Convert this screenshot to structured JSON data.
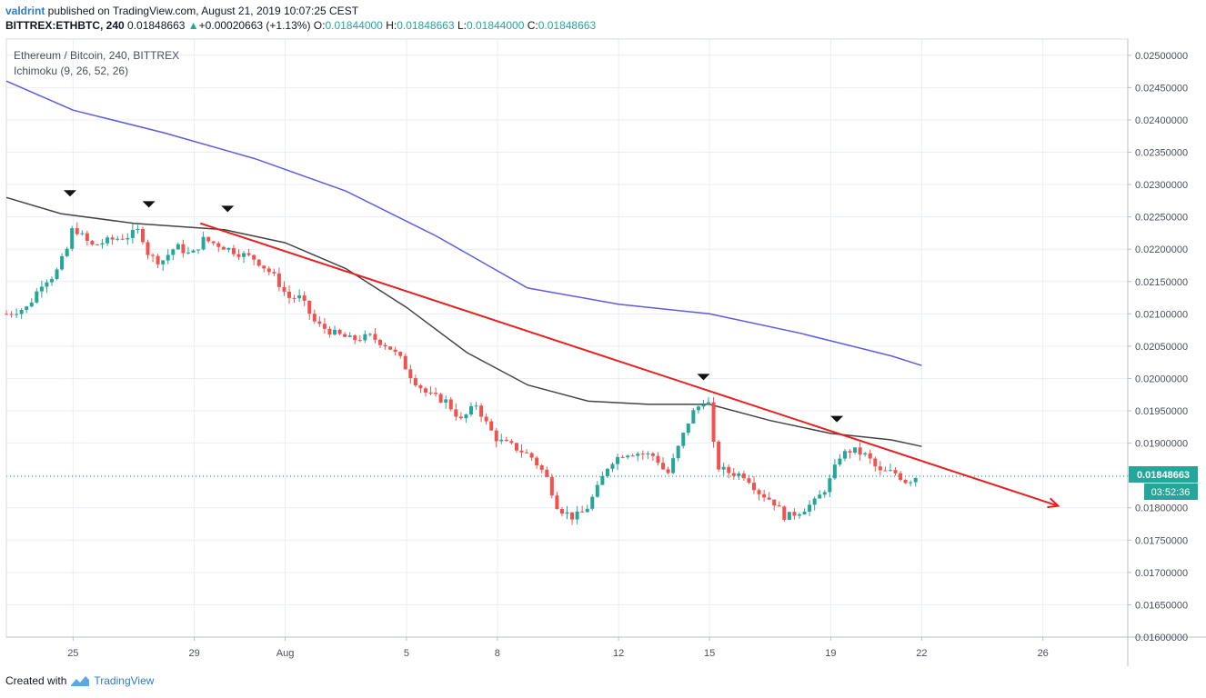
{
  "header": {
    "author": "valdrint",
    "published_text": " published on TradingView.com, August 21, 2019 10:07:25 CEST",
    "symbol": "BITTREX:ETHBTC, 240",
    "last": "0.01848663",
    "change_arrow": "▲",
    "change": "+0.00020663 (+1.13%)",
    "o_label": "O:",
    "o_value": "0.01844000",
    "h_label": "H:",
    "h_value": "0.01848663",
    "l_label": "L:",
    "l_value": "0.01844000",
    "c_label": "C:",
    "c_value": "0.01848663"
  },
  "legend": {
    "title": "Ethereum / Bitcoin, 240, BITTREX",
    "indicator": "Ichimoku (9, 26, 52, 26)"
  },
  "price_tag": {
    "value": "0.01848663",
    "countdown": "03:52:36"
  },
  "footer": {
    "created_with": "Created with",
    "brand": "TradingView",
    "logo_icon": "tradingview-logo-icon"
  },
  "colors": {
    "up": "#26a69a",
    "down": "#ef5350",
    "trend": "#e8201f",
    "slow_ma": "#5b5ce0",
    "fast_ma": "#444444",
    "grid": "#e9eef5",
    "price_line": "#26a69a"
  },
  "chart_data": {
    "type": "candlestick",
    "title": "Ethereum / Bitcoin, 240, BITTREX",
    "ylim": [
      0.016,
      0.02525
    ],
    "y_ticks": [
      "0.02500000",
      "0.02450000",
      "0.02400000",
      "0.02350000",
      "0.02300000",
      "0.02250000",
      "0.02200000",
      "0.02150000",
      "0.02100000",
      "0.02050000",
      "0.02000000",
      "0.01950000",
      "0.01900000",
      "0.01850000",
      "0.01800000",
      "0.01750000",
      "0.01700000",
      "0.01650000",
      "0.01600000"
    ],
    "x_ticks": [
      {
        "label": "25",
        "day": 25
      },
      {
        "label": "29",
        "day": 29
      },
      {
        "label": "Aug",
        "day": 32
      },
      {
        "label": "5",
        "day": 36
      },
      {
        "label": "8",
        "day": 39
      },
      {
        "label": "12",
        "day": 43
      },
      {
        "label": "15",
        "day": 46
      },
      {
        "label": "19",
        "day": 50
      },
      {
        "label": "22",
        "day": 53
      },
      {
        "label": "26",
        "day": 57
      }
    ],
    "x_range_days": [
      22.8,
      59.8
    ],
    "candle_path": [
      [
        22.8,
        0.021
      ],
      [
        23.5,
        0.0211
      ],
      [
        24.0,
        0.0215
      ],
      [
        24.4,
        0.0216
      ],
      [
        24.8,
        0.022
      ],
      [
        25.0,
        0.02235
      ],
      [
        25.6,
        0.02205
      ],
      [
        26.3,
        0.02215
      ],
      [
        26.8,
        0.0222
      ],
      [
        27.2,
        0.0223
      ],
      [
        27.5,
        0.0219
      ],
      [
        27.9,
        0.0218
      ],
      [
        28.4,
        0.02205
      ],
      [
        28.9,
        0.0219
      ],
      [
        29.3,
        0.02215
      ],
      [
        29.9,
        0.02205
      ],
      [
        30.4,
        0.02195
      ],
      [
        31.0,
        0.02185
      ],
      [
        31.6,
        0.0216
      ],
      [
        32.1,
        0.02125
      ],
      [
        32.5,
        0.02125
      ],
      [
        33.0,
        0.02085
      ],
      [
        33.6,
        0.0207
      ],
      [
        34.2,
        0.0206
      ],
      [
        34.8,
        0.02065
      ],
      [
        35.4,
        0.0205
      ],
      [
        35.8,
        0.0203
      ],
      [
        36.2,
        0.02
      ],
      [
        36.7,
        0.01975
      ],
      [
        37.3,
        0.01965
      ],
      [
        37.8,
        0.01935
      ],
      [
        38.3,
        0.0196
      ],
      [
        38.7,
        0.01925
      ],
      [
        39.0,
        0.01905
      ],
      [
        39.5,
        0.01895
      ],
      [
        40.1,
        0.0188
      ],
      [
        40.6,
        0.0185
      ],
      [
        41.0,
        0.018
      ],
      [
        41.5,
        0.01785
      ],
      [
        41.9,
        0.01795
      ],
      [
        42.3,
        0.0183
      ],
      [
        42.7,
        0.0187
      ],
      [
        43.2,
        0.01885
      ],
      [
        43.6,
        0.01885
      ],
      [
        44.2,
        0.0188
      ],
      [
        44.6,
        0.0185
      ],
      [
        44.9,
        0.01885
      ],
      [
        45.4,
        0.01945
      ],
      [
        45.8,
        0.01965
      ],
      [
        46.0,
        0.0196
      ],
      [
        46.2,
        0.01865
      ],
      [
        46.6,
        0.01855
      ],
      [
        47.2,
        0.0185
      ],
      [
        47.6,
        0.01825
      ],
      [
        48.1,
        0.0181
      ],
      [
        48.5,
        0.01785
      ],
      [
        49.0,
        0.01795
      ],
      [
        49.5,
        0.0181
      ],
      [
        49.9,
        0.01835
      ],
      [
        50.3,
        0.0188
      ],
      [
        50.7,
        0.0189
      ],
      [
        51.2,
        0.0188
      ],
      [
        51.6,
        0.01855
      ],
      [
        52.1,
        0.01855
      ],
      [
        52.5,
        0.0184
      ],
      [
        52.8,
        0.01848
      ]
    ],
    "fast_ma": [
      [
        22.8,
        0.0228
      ],
      [
        24.6,
        0.02255
      ],
      [
        27.0,
        0.0224
      ],
      [
        30.0,
        0.0223
      ],
      [
        32.0,
        0.0221
      ],
      [
        34.0,
        0.0217
      ],
      [
        36.0,
        0.0211
      ],
      [
        38.0,
        0.0204
      ],
      [
        40.0,
        0.0199
      ],
      [
        42.0,
        0.01965
      ],
      [
        44.0,
        0.0196
      ],
      [
        46.0,
        0.0196
      ],
      [
        48.0,
        0.01935
      ],
      [
        50.0,
        0.01915
      ],
      [
        52.0,
        0.01905
      ],
      [
        53.0,
        0.01895
      ]
    ],
    "slow_ma": [
      [
        22.8,
        0.0246
      ],
      [
        25.0,
        0.02415
      ],
      [
        28.0,
        0.0238
      ],
      [
        31.0,
        0.0234
      ],
      [
        34.0,
        0.0229
      ],
      [
        37.0,
        0.0222
      ],
      [
        40.0,
        0.0214
      ],
      [
        43.0,
        0.02115
      ],
      [
        46.0,
        0.021
      ],
      [
        49.0,
        0.0207
      ],
      [
        52.0,
        0.02035
      ],
      [
        53.0,
        0.0202
      ]
    ],
    "trendline": [
      [
        29.2,
        0.0224
      ],
      [
        57.5,
        0.01803
      ]
    ],
    "pivot_markers": [
      [
        24.9,
        0.02287
      ],
      [
        27.5,
        0.0227
      ],
      [
        30.1,
        0.02263
      ],
      [
        45.8,
        0.02003
      ],
      [
        50.2,
        0.01938
      ]
    ],
    "last_price": 0.01848663
  }
}
